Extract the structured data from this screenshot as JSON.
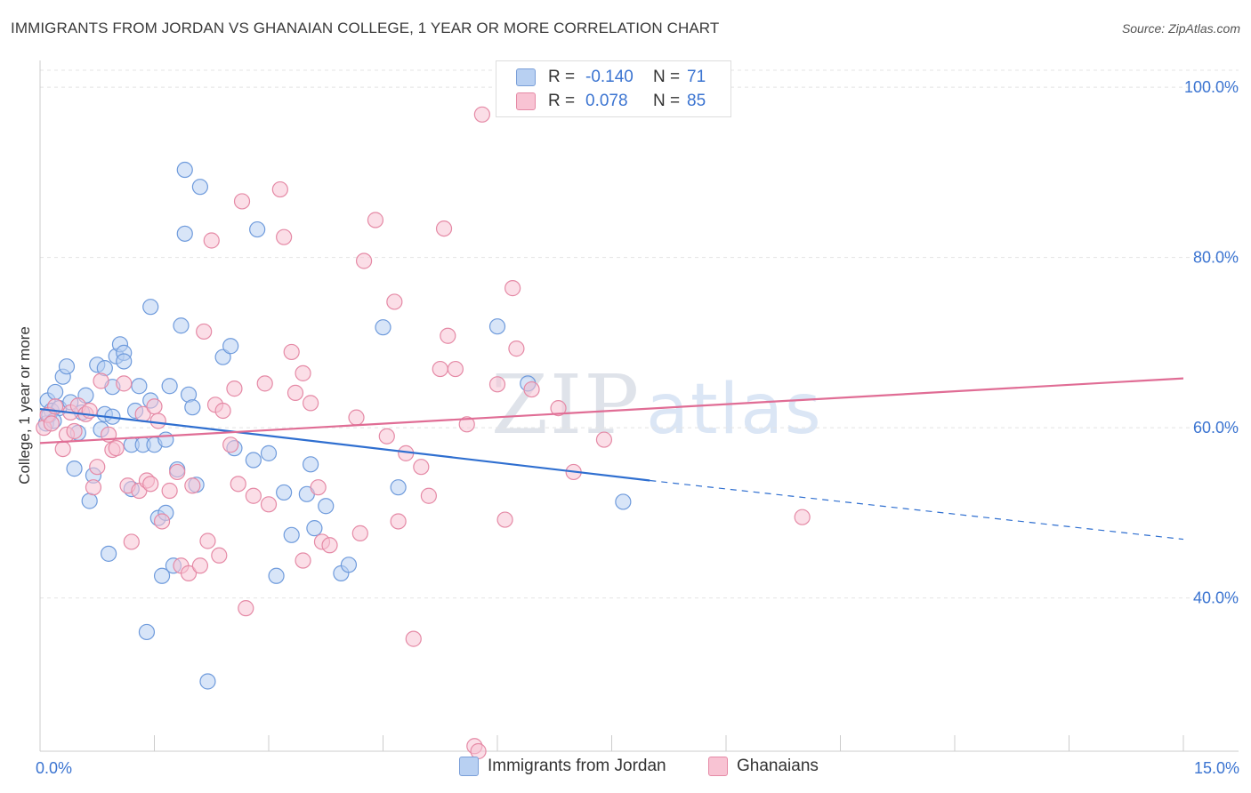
{
  "header": {
    "title": "IMMIGRANTS FROM JORDAN VS GHANAIAN COLLEGE, 1 YEAR OR MORE CORRELATION CHART",
    "source": "Source: ZipAtlas.com"
  },
  "stats": {
    "row1": {
      "r_label": "R =",
      "r_value": "-0.140",
      "n_label": "N =",
      "n_value": "71"
    },
    "row2": {
      "r_label": "R =",
      "r_value": "0.078",
      "n_label": "N =",
      "n_value": "85"
    }
  },
  "legend": {
    "series1": "Immigrants from Jordan",
    "series2": "Ghanaians"
  },
  "watermark": {
    "zip": "ZIP",
    "atlas": "atlas"
  },
  "colors": {
    "blue_fill": "#b8d0f2",
    "blue_stroke": "#6f9bdc",
    "blue_line": "#2f6fd0",
    "pink_fill": "#f8c3d3",
    "pink_stroke": "#e58aa6",
    "pink_line": "#e06d95",
    "tick_text": "#3b74d1"
  },
  "chart_data": {
    "type": "scatter",
    "title": "IMMIGRANTS FROM JORDAN VS GHANAIAN COLLEGE, 1 YEAR OR MORE CORRELATION CHART",
    "xlabel": "",
    "ylabel": "College, 1 year or more",
    "xlim": [
      0,
      15
    ],
    "ylim": [
      22,
      102
    ],
    "x_tick_labels": [
      {
        "value": 0,
        "label": "0.0%"
      },
      {
        "value": 15,
        "label": "15.0%"
      }
    ],
    "y_tick_labels": [
      {
        "value": 40,
        "label": "40.0%"
      },
      {
        "value": 60,
        "label": "60.0%"
      },
      {
        "value": 80,
        "label": "80.0%"
      },
      {
        "value": 100,
        "label": "100.0%"
      }
    ],
    "grid": true,
    "series": [
      {
        "name": "Immigrants from Jordan",
        "r": -0.14,
        "n": 71,
        "trend": {
          "x0": 0.0,
          "y0": 62.2,
          "x1": 8.0,
          "y1": 53.8,
          "dash_to_x": 15.0,
          "dash_to_y": 46.9
        },
        "points": [
          [
            0.1,
            63.2
          ],
          [
            0.15,
            62.0
          ],
          [
            0.2,
            64.2
          ],
          [
            0.25,
            62.3
          ],
          [
            0.3,
            66.0
          ],
          [
            0.35,
            67.2
          ],
          [
            0.4,
            63.0
          ],
          [
            0.45,
            55.2
          ],
          [
            0.5,
            59.4
          ],
          [
            0.55,
            61.8
          ],
          [
            0.6,
            63.8
          ],
          [
            0.65,
            51.4
          ],
          [
            0.7,
            54.4
          ],
          [
            0.75,
            67.4
          ],
          [
            0.8,
            59.8
          ],
          [
            0.85,
            61.6
          ],
          [
            0.85,
            67.0
          ],
          [
            0.9,
            45.2
          ],
          [
            0.95,
            61.3
          ],
          [
            0.95,
            64.8
          ],
          [
            1.0,
            68.4
          ],
          [
            1.05,
            69.8
          ],
          [
            1.1,
            68.8
          ],
          [
            1.1,
            67.8
          ],
          [
            1.2,
            52.8
          ],
          [
            1.2,
            58.0
          ],
          [
            1.25,
            62.0
          ],
          [
            1.3,
            64.9
          ],
          [
            1.35,
            58.0
          ],
          [
            1.4,
            36.0
          ],
          [
            1.45,
            63.2
          ],
          [
            1.5,
            58.0
          ],
          [
            1.45,
            74.2
          ],
          [
            1.55,
            49.4
          ],
          [
            1.6,
            42.6
          ],
          [
            1.65,
            58.6
          ],
          [
            1.65,
            50.0
          ],
          [
            1.7,
            64.9
          ],
          [
            1.75,
            43.8
          ],
          [
            1.8,
            55.1
          ],
          [
            1.85,
            72.0
          ],
          [
            1.9,
            82.8
          ],
          [
            1.9,
            90.3
          ],
          [
            1.95,
            63.9
          ],
          [
            2.0,
            62.4
          ],
          [
            2.05,
            53.3
          ],
          [
            2.1,
            88.3
          ],
          [
            2.2,
            30.2
          ],
          [
            2.4,
            68.3
          ],
          [
            2.5,
            69.6
          ],
          [
            2.55,
            57.6
          ],
          [
            2.8,
            56.2
          ],
          [
            2.85,
            83.3
          ],
          [
            3.0,
            57.0
          ],
          [
            3.1,
            42.6
          ],
          [
            3.2,
            52.4
          ],
          [
            3.3,
            47.4
          ],
          [
            3.5,
            52.2
          ],
          [
            3.55,
            55.7
          ],
          [
            3.6,
            48.2
          ],
          [
            3.75,
            50.8
          ],
          [
            3.95,
            42.9
          ],
          [
            4.05,
            43.9
          ],
          [
            4.5,
            71.8
          ],
          [
            4.7,
            53.0
          ],
          [
            6.0,
            71.9
          ],
          [
            6.4,
            65.2
          ],
          [
            7.65,
            51.3
          ],
          [
            0.08,
            60.5
          ],
          [
            0.12,
            61.5
          ],
          [
            0.18,
            60.8
          ]
        ]
      },
      {
        "name": "Ghanaians",
        "r": 0.078,
        "n": 85,
        "trend": {
          "x0": 0.0,
          "y0": 58.2,
          "x1": 15.0,
          "y1": 65.8
        },
        "points": [
          [
            0.05,
            60.0
          ],
          [
            0.1,
            61.5
          ],
          [
            0.15,
            60.5
          ],
          [
            0.2,
            62.5
          ],
          [
            0.3,
            57.5
          ],
          [
            0.35,
            59.2
          ],
          [
            0.4,
            61.8
          ],
          [
            0.45,
            59.6
          ],
          [
            0.5,
            62.6
          ],
          [
            0.6,
            61.6
          ],
          [
            0.65,
            62.0
          ],
          [
            0.7,
            53.0
          ],
          [
            0.75,
            55.4
          ],
          [
            0.8,
            65.5
          ],
          [
            0.9,
            59.2
          ],
          [
            0.95,
            57.4
          ],
          [
            1.0,
            57.6
          ],
          [
            1.1,
            65.2
          ],
          [
            1.15,
            53.2
          ],
          [
            1.2,
            46.6
          ],
          [
            1.3,
            52.6
          ],
          [
            1.35,
            61.6
          ],
          [
            1.4,
            53.8
          ],
          [
            1.45,
            53.4
          ],
          [
            1.5,
            62.5
          ],
          [
            1.55,
            60.8
          ],
          [
            1.6,
            49.0
          ],
          [
            1.7,
            52.6
          ],
          [
            1.8,
            54.8
          ],
          [
            1.85,
            43.8
          ],
          [
            1.95,
            42.9
          ],
          [
            2.0,
            53.2
          ],
          [
            2.1,
            43.8
          ],
          [
            2.15,
            71.3
          ],
          [
            2.2,
            46.7
          ],
          [
            2.25,
            82.0
          ],
          [
            2.3,
            62.7
          ],
          [
            2.35,
            45.0
          ],
          [
            2.4,
            62.0
          ],
          [
            2.5,
            58.0
          ],
          [
            2.55,
            64.6
          ],
          [
            2.6,
            53.4
          ],
          [
            2.65,
            86.6
          ],
          [
            2.7,
            38.8
          ],
          [
            2.8,
            52.0
          ],
          [
            2.95,
            65.2
          ],
          [
            3.0,
            51.0
          ],
          [
            3.15,
            88.0
          ],
          [
            3.2,
            82.4
          ],
          [
            3.3,
            68.9
          ],
          [
            3.35,
            64.1
          ],
          [
            3.45,
            66.4
          ],
          [
            3.45,
            44.4
          ],
          [
            3.55,
            62.9
          ],
          [
            3.65,
            53.0
          ],
          [
            3.7,
            46.6
          ],
          [
            3.8,
            46.2
          ],
          [
            4.15,
            61.2
          ],
          [
            4.2,
            47.6
          ],
          [
            4.25,
            79.6
          ],
          [
            4.4,
            84.4
          ],
          [
            4.55,
            59.0
          ],
          [
            4.65,
            74.8
          ],
          [
            4.7,
            49.0
          ],
          [
            4.8,
            57.0
          ],
          [
            4.9,
            35.2
          ],
          [
            5.0,
            55.4
          ],
          [
            5.1,
            52.0
          ],
          [
            5.25,
            66.9
          ],
          [
            5.3,
            83.4
          ],
          [
            5.35,
            70.8
          ],
          [
            5.45,
            66.9
          ],
          [
            5.6,
            60.4
          ],
          [
            5.7,
            22.6
          ],
          [
            5.75,
            22.0
          ],
          [
            5.8,
            96.8
          ],
          [
            6.0,
            65.1
          ],
          [
            6.1,
            49.2
          ],
          [
            6.2,
            76.4
          ],
          [
            6.25,
            69.3
          ],
          [
            6.45,
            64.5
          ],
          [
            7.0,
            54.8
          ],
          [
            10.0,
            49.5
          ],
          [
            6.8,
            62.3
          ],
          [
            7.4,
            58.6
          ]
        ]
      }
    ]
  }
}
